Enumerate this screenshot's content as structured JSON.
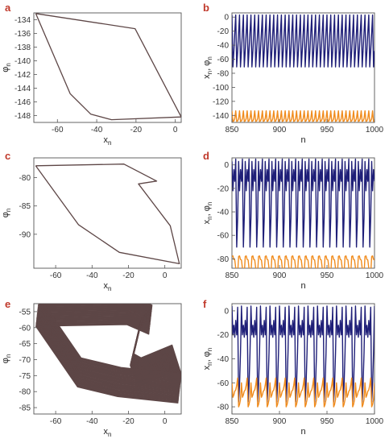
{
  "chart_data": [
    {
      "panel": "a",
      "type": "line",
      "xlabel": "x",
      "xlabel_sub": "n",
      "ylabel": "φ",
      "ylabel_sub": "n",
      "xlim": [
        -72,
        3
      ],
      "ylim": [
        -149,
        -133
      ],
      "xticks": [
        "-60",
        "-40",
        "-20",
        "0"
      ],
      "xtick_values": [
        -60,
        -40,
        -20,
        0
      ],
      "yticks": [
        "-134",
        "-136",
        "-138",
        "-140",
        "-142",
        "-144",
        "-146",
        "-148"
      ],
      "ytick_values": [
        -134,
        -136,
        -138,
        -140,
        -142,
        -144,
        -146,
        -148
      ],
      "series": [
        {
          "color": "#5d4646",
          "repeat": 1,
          "jitter": 0,
          "x": [
            -71,
            -20.5,
            3,
            -32.5,
            -43,
            -53.5,
            -71
          ],
          "y": [
            -133.1,
            -135.3,
            -148.2,
            -148.6,
            -147.8,
            -144.8,
            -133.1
          ]
        }
      ]
    },
    {
      "panel": "b",
      "type": "line",
      "xlabel": "n",
      "ylabel": "x",
      "ylabel_sub": "n",
      "ylabel_mid": ", φ",
      "ylabel_sub2": "n",
      "xlim": [
        850,
        1000
      ],
      "ylim": [
        -150,
        6
      ],
      "xticks": [
        "850",
        "900",
        "950",
        "1000"
      ],
      "xtick_values": [
        850,
        900,
        950,
        1000
      ],
      "yticks": [
        "0",
        "-20",
        "-40",
        "-60",
        "-80",
        "-100",
        "-120",
        "-140"
      ],
      "ytick_values": [
        0,
        -20,
        -40,
        -60,
        -80,
        -100,
        -120,
        -140
      ],
      "series": [
        {
          "color": "#1f1f78",
          "start": 850,
          "pattern": [
            3,
            -71,
            -48,
            -22,
            3,
            -71,
            -48,
            -22
          ]
        },
        {
          "color": "#f08c1e",
          "start": 850,
          "pattern": [
            -133.5,
            -148.5,
            -147.8,
            -144.5,
            -133.5,
            -148.5,
            -147.8,
            -144.5
          ]
        }
      ]
    },
    {
      "panel": "c",
      "type": "line",
      "xlabel": "x",
      "xlabel_sub": "n",
      "ylabel": "φ",
      "ylabel_sub": "n",
      "xlim": [
        -72,
        9
      ],
      "ylim": [
        -96,
        -76.5
      ],
      "xticks": [
        "-60",
        "-40",
        "-20",
        "0"
      ],
      "xtick_values": [
        -60,
        -40,
        -20,
        0
      ],
      "yticks": [
        "-80",
        "-85",
        "-90"
      ],
      "ytick_values": [
        -80,
        -85,
        -90
      ],
      "series": [
        {
          "color": "#5d4646",
          "repeat": 1,
          "jitter": 0,
          "x": [
            -71,
            -22.5,
            -4.5,
            -14.5,
            3,
            8,
            -25,
            -47.5,
            -71
          ],
          "y": [
            -77.9,
            -77.6,
            -80.6,
            -81.1,
            -88.5,
            -95.2,
            -93.2,
            -88.3,
            -77.9
          ]
        }
      ]
    },
    {
      "panel": "d",
      "type": "line",
      "xlabel": "n",
      "ylabel": "x",
      "ylabel_sub": "n",
      "ylabel_mid": ", φ",
      "ylabel_sub2": "n",
      "xlim": [
        850,
        1000
      ],
      "ylim": [
        -88,
        6
      ],
      "xticks": [
        "850",
        "900",
        "950",
        "1000"
      ],
      "xtick_values": [
        850,
        900,
        950,
        1000
      ],
      "yticks": [
        "0",
        "-20",
        "-40",
        "-60",
        "-80"
      ],
      "ytick_values": [
        0,
        -20,
        -40,
        -60,
        -80
      ],
      "series": [
        {
          "color": "#1f1f78",
          "start": 850,
          "pattern": [
            3,
            -22,
            -4,
            -14,
            5,
            -70,
            -45
          ]
        },
        {
          "color": "#f08c1e",
          "start": 850,
          "pattern": [
            -78,
            -77.5,
            -80.5,
            -81,
            -88,
            -95,
            -93
          ]
        }
      ]
    },
    {
      "panel": "e",
      "type": "line",
      "xlabel": "x",
      "xlabel_sub": "n",
      "ylabel": "φ",
      "ylabel_sub": "n",
      "xlim": [
        -72,
        9
      ],
      "ylim": [
        -87,
        -52.5
      ],
      "xticks": [
        "-60",
        "-40",
        "-20",
        "0"
      ],
      "xtick_values": [
        -60,
        -40,
        -20,
        0
      ],
      "yticks": [
        "-55",
        "-60",
        "-65",
        "-70",
        "-75",
        "-80",
        "-85"
      ],
      "ytick_values": [
        -55,
        -60,
        -65,
        -70,
        -75,
        -80,
        -85
      ],
      "series": [
        {
          "color": "#5d4646",
          "repeat": 30,
          "jitter": 9,
          "x": [
            -70,
            -20,
            -8,
            -13,
            -18,
            -14,
            3,
            8,
            -25,
            -47,
            -70
          ],
          "y": [
            -55,
            -54.5,
            -57.5,
            -58,
            -70,
            -74,
            -70,
            -79,
            -77,
            -74,
            -55
          ]
        }
      ]
    },
    {
      "panel": "f",
      "type": "line",
      "xlabel": "n",
      "ylabel": "x",
      "ylabel_sub": "n",
      "ylabel_mid": ", φ",
      "ylabel_sub2": "n",
      "xlim": [
        850,
        1000
      ],
      "ylim": [
        -86,
        6
      ],
      "xticks": [
        "850",
        "900",
        "950",
        "1000"
      ],
      "xtick_values": [
        850,
        900,
        950,
        1000
      ],
      "yticks": [
        "0",
        "-20",
        "-40",
        "-60",
        "-80"
      ],
      "ytick_values": [
        0,
        -20,
        -40,
        -60,
        -80
      ],
      "series": [
        {
          "color": "#1f1f78",
          "start": 850,
          "pattern": [
            4,
            -20,
            -12,
            -22,
            -8,
            -20,
            3,
            -76,
            -62,
            -35
          ]
        },
        {
          "color": "#f08c1e",
          "start": 850,
          "pattern": [
            -60,
            -72,
            -70,
            -67,
            -66,
            -62,
            -56,
            -80,
            -78,
            -74
          ]
        }
      ]
    }
  ]
}
